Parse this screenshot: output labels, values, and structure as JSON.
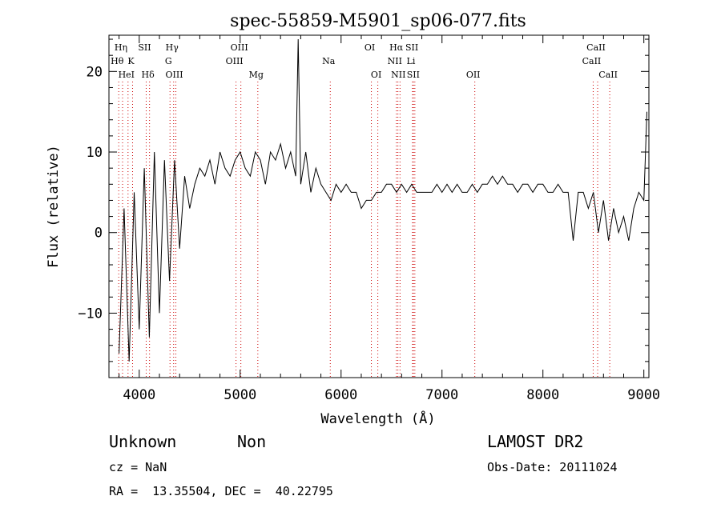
{
  "chart_data": {
    "type": "line",
    "title": "spec-55859-M5901_sp06-077.fits",
    "xlabel": "Wavelength (Å)",
    "ylabel": "Flux (relative)",
    "xlim": [
      3700,
      9050
    ],
    "ylim": [
      -18,
      24.5
    ],
    "xticks": [
      4000,
      5000,
      6000,
      7000,
      8000,
      9000
    ],
    "yticks": [
      -10,
      0,
      10,
      20
    ],
    "grid": false,
    "legend": "none",
    "line_color": "#000000",
    "marker_color": "#cc0000",
    "series": [
      {
        "name": "",
        "x": [
          3800,
          3850,
          3900,
          3950,
          4000,
          4050,
          4100,
          4150,
          4200,
          4250,
          4300,
          4350,
          4400,
          4450,
          4500,
          4550,
          4600,
          4650,
          4700,
          4750,
          4800,
          4850,
          4900,
          4950,
          5000,
          5050,
          5100,
          5150,
          5200,
          5250,
          5300,
          5350,
          5400,
          5450,
          5500,
          5550,
          5575,
          5600,
          5650,
          5700,
          5750,
          5800,
          5850,
          5900,
          5950,
          6000,
          6050,
          6100,
          6150,
          6200,
          6250,
          6300,
          6350,
          6400,
          6450,
          6500,
          6550,
          6600,
          6650,
          6700,
          6750,
          6800,
          6850,
          6900,
          6950,
          7000,
          7050,
          7100,
          7150,
          7200,
          7250,
          7300,
          7350,
          7400,
          7450,
          7500,
          7550,
          7600,
          7650,
          7700,
          7750,
          7800,
          7850,
          7900,
          7950,
          8000,
          8050,
          8100,
          8150,
          8200,
          8250,
          8300,
          8350,
          8400,
          8450,
          8500,
          8550,
          8600,
          8650,
          8700,
          8750,
          8800,
          8850,
          8900,
          8950,
          9000,
          9030
        ],
        "y": [
          -15,
          3,
          -16,
          5,
          -12,
          8,
          -13,
          10,
          -10,
          9,
          -6,
          9,
          -2,
          7,
          3,
          6,
          8,
          7,
          9,
          6,
          10,
          8,
          7,
          9,
          10,
          8,
          7,
          10,
          9,
          6,
          10,
          9,
          11,
          8,
          10,
          7,
          24,
          6,
          10,
          5,
          8,
          6,
          5,
          4,
          6,
          5,
          6,
          5,
          5,
          3,
          4,
          4,
          5,
          5,
          6,
          6,
          5,
          6,
          5,
          6,
          5,
          5,
          5,
          5,
          6,
          5,
          6,
          5,
          6,
          5,
          5,
          6,
          5,
          6,
          6,
          7,
          6,
          7,
          6,
          6,
          5,
          6,
          6,
          5,
          6,
          6,
          5,
          5,
          6,
          5,
          5,
          -1,
          5,
          5,
          3,
          5,
          0,
          4,
          -1,
          3,
          0,
          2,
          -1,
          3,
          5,
          4,
          15
        ]
      }
    ],
    "line_markers": [
      {
        "label": "Hη",
        "x": 3835,
        "row": 0
      },
      {
        "label": "Hθ",
        "x": 3797,
        "row": 1
      },
      {
        "label": "HeI",
        "x": 3889,
        "row": 2
      },
      {
        "label": "SII",
        "x": 4069,
        "row": 0
      },
      {
        "label": "K",
        "x": 3934,
        "row": 1
      },
      {
        "label": "Hδ",
        "x": 4102,
        "row": 2
      },
      {
        "label": "Hγ",
        "x": 4341,
        "row": 0
      },
      {
        "label": "G",
        "x": 4305,
        "row": 1
      },
      {
        "label": "OIII",
        "x": 4363,
        "row": 2
      },
      {
        "label": "OIII",
        "x": 5007,
        "row": 0
      },
      {
        "label": "OIII",
        "x": 4959,
        "row": 1
      },
      {
        "label": "Mg",
        "x": 5175,
        "row": 2
      },
      {
        "label": "Na",
        "x": 5893,
        "row": 1
      },
      {
        "label": "OI",
        "x": 6300,
        "row": 0
      },
      {
        "label": "OI",
        "x": 6364,
        "row": 2
      },
      {
        "label": "Hα",
        "x": 6563,
        "row": 0
      },
      {
        "label": "NII",
        "x": 6548,
        "row": 1
      },
      {
        "label": "NII",
        "x": 6584,
        "row": 2
      },
      {
        "label": "SII",
        "x": 6717,
        "row": 0
      },
      {
        "label": "Li",
        "x": 6708,
        "row": 1
      },
      {
        "label": "SII",
        "x": 6731,
        "row": 2
      },
      {
        "label": "OII",
        "x": 7325,
        "row": 2
      },
      {
        "label": "CaII",
        "x": 8542,
        "row": 0
      },
      {
        "label": "CaII",
        "x": 8498,
        "row": 1
      },
      {
        "label": "CaII",
        "x": 8662,
        "row": 2
      }
    ]
  },
  "info": {
    "class_label": "Unknown",
    "subclass_label": "Non",
    "survey": "LAMOST DR2",
    "cz": "cz = NaN",
    "obs_date": "Obs-Date: 20111024",
    "radec": "RA =  13.35504, DEC =  40.22795"
  }
}
